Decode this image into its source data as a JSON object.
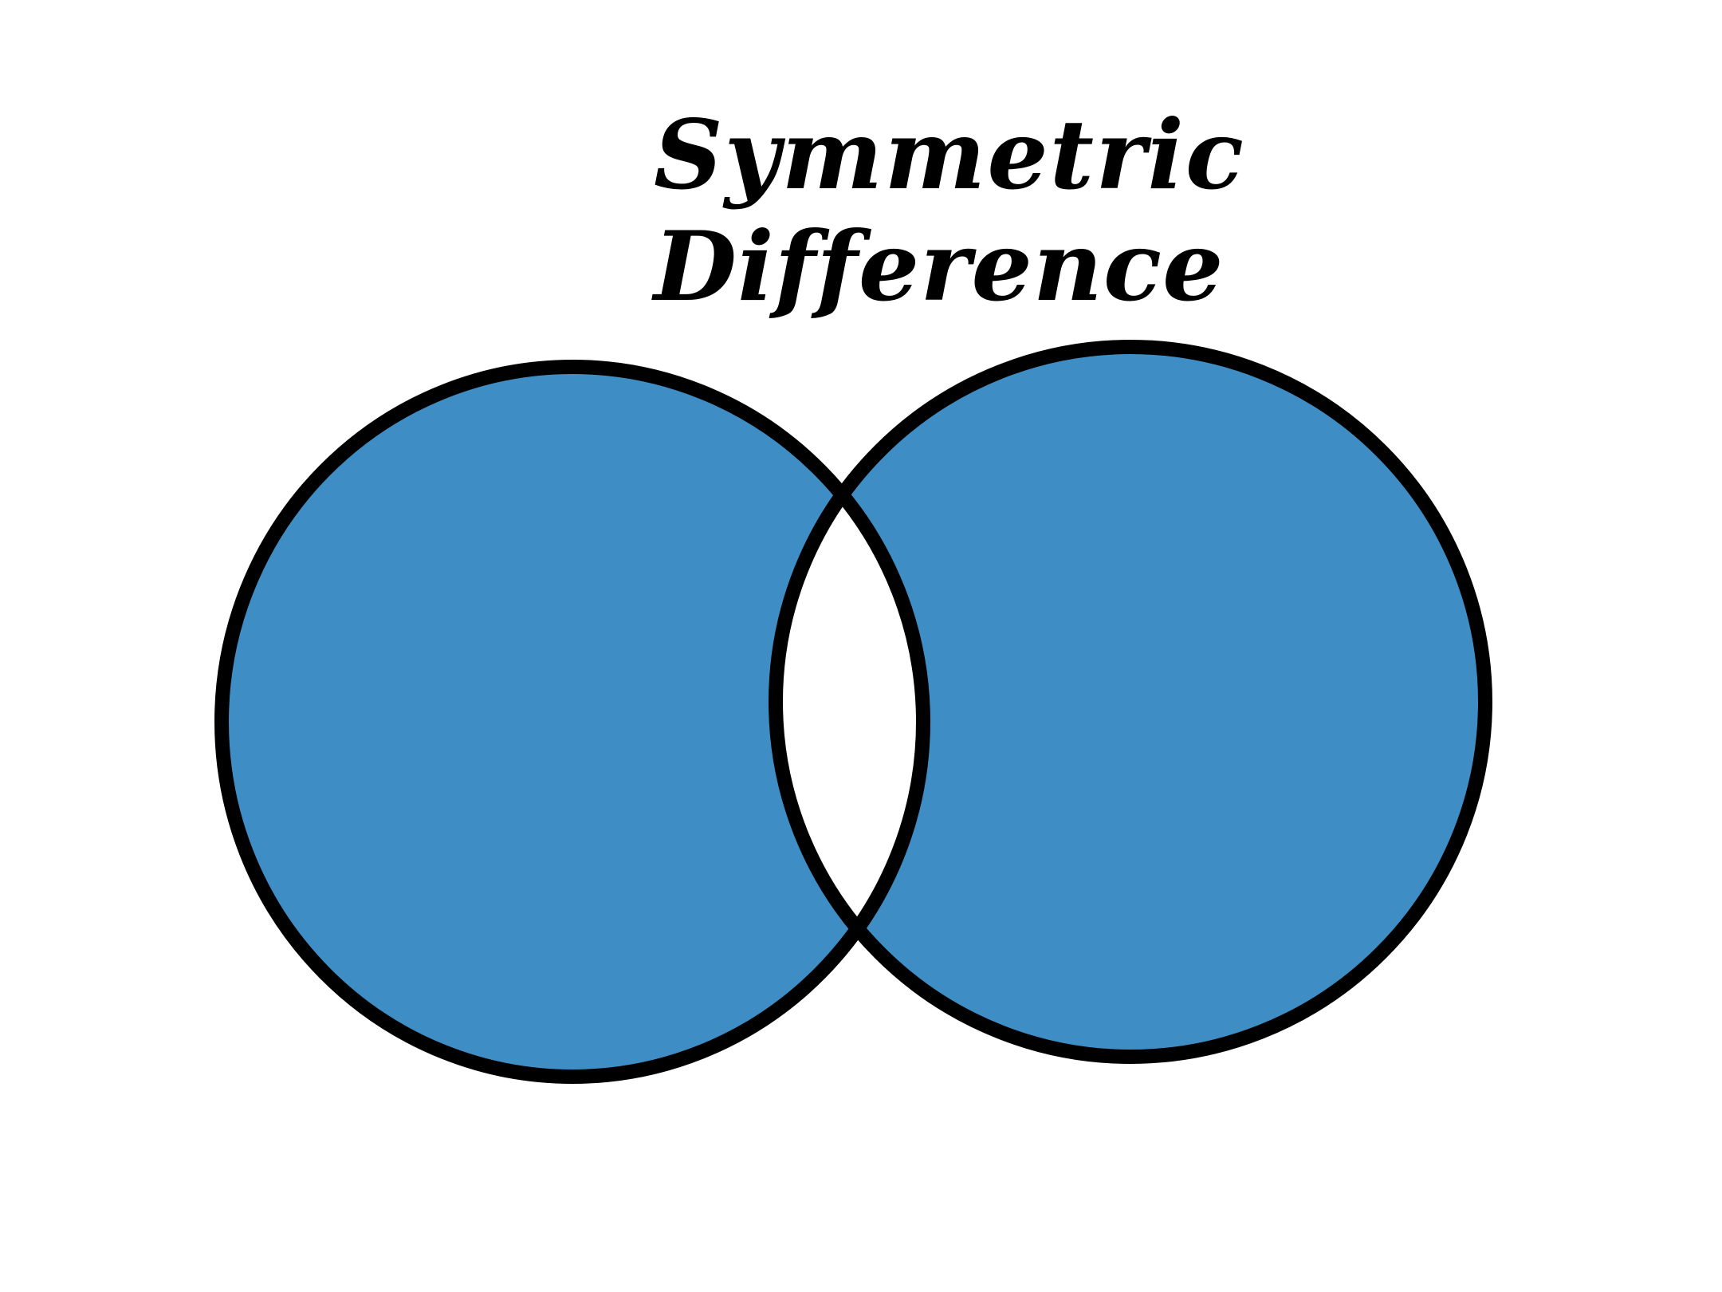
{
  "title": {
    "line1": "Symmetric",
    "line2": "Difference"
  },
  "colors": {
    "fill": "#3E8EC5",
    "stroke": "#000000",
    "background": "#FFFFFF"
  }
}
